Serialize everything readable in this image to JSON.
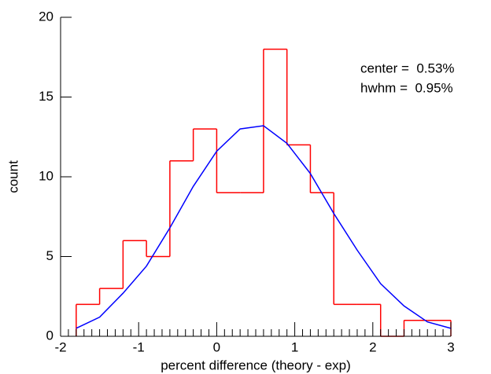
{
  "chart_data": {
    "type": "histogram",
    "x_label": "percent difference (theory - exp)",
    "y_label": "count",
    "bins": [
      -1.8,
      -1.5,
      -1.2,
      -0.9,
      -0.6,
      -0.3,
      0.0,
      0.3,
      0.6,
      0.9,
      1.2,
      1.5,
      1.8,
      2.1,
      2.4,
      2.7,
      3.0
    ],
    "values": [
      2,
      3,
      6,
      5,
      11,
      13,
      9,
      9,
      18,
      12,
      9,
      2,
      2,
      0,
      1,
      1
    ],
    "color": "#ff0000",
    "fit": {
      "color": "#0000ff",
      "x": [
        -1.8,
        -1.5,
        -1.2,
        -0.9,
        -0.6,
        -0.3,
        0.0,
        0.3,
        0.6,
        0.9,
        1.2,
        1.5,
        1.8,
        2.1,
        2.4,
        2.7,
        3.0
      ],
      "values": [
        0.5,
        1.2,
        2.7,
        4.4,
        6.8,
        9.4,
        11.6,
        13.0,
        13.2,
        12.1,
        10.2,
        7.7,
        5.4,
        3.3,
        1.9,
        0.9,
        0.5
      ]
    },
    "annotations": [
      "center =  0.53%",
      "hwhm =  0.95%"
    ],
    "xlim": [
      -2,
      3
    ],
    "ylim": [
      0,
      20
    ],
    "xticks": [
      -2,
      -1,
      0,
      1,
      2,
      3
    ],
    "xminorticks": [
      -1.9,
      -1.8,
      -1.7,
      -1.6,
      -1.5,
      -1.4,
      -1.3,
      -1.2,
      -1.1,
      -0.9,
      -0.8,
      -0.7,
      -0.6,
      -0.5,
      -0.4,
      -0.3,
      -0.2,
      -0.1,
      0.1,
      0.2,
      0.3,
      0.4,
      0.5,
      0.6,
      0.7,
      0.8,
      0.9,
      1.1,
      1.2,
      1.3,
      1.4,
      1.5,
      1.6,
      1.7,
      1.8,
      1.9,
      2.1,
      2.2,
      2.3,
      2.4,
      2.5,
      2.6,
      2.7,
      2.8,
      2.9
    ],
    "yticks": [
      0,
      5,
      10,
      15,
      20
    ]
  }
}
